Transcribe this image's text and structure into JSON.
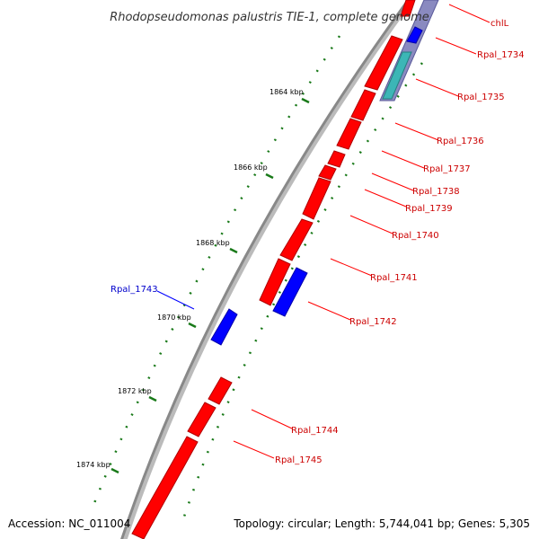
{
  "header": {
    "title": "Rhodopseudomonas palustris TIE-1, complete genome"
  },
  "footer": {
    "accession": "Accession: NC_011004",
    "topology": "Topology: circular; Length: 5,744,041 bp; Genes: 5,305"
  },
  "colors": {
    "forward_strand": "#ff0000",
    "reverse_strand": "#0000ff",
    "label_forward": "#cc0000",
    "label_reverse": "#0000cc",
    "tick": "#1a7a1a",
    "backbone": "#888888",
    "other_feature": "#3cb6b6",
    "highlight": "#8a8ac0"
  },
  "ticks": [
    {
      "label": "1864 kbp"
    },
    {
      "label": "1866 kbp"
    },
    {
      "label": "1868 kbp"
    },
    {
      "label": "1870 kbp"
    },
    {
      "label": "1872 kbp"
    },
    {
      "label": "1874 kbp"
    }
  ],
  "genes": [
    {
      "name": "chlL",
      "strand": "reverse"
    },
    {
      "name": "Rpal_1734",
      "strand": "reverse"
    },
    {
      "name": "Rpal_1735",
      "strand": "forward"
    },
    {
      "name": "Rpal_1736",
      "strand": "forward"
    },
    {
      "name": "Rpal_1737",
      "strand": "forward"
    },
    {
      "name": "Rpal_1738",
      "strand": "forward"
    },
    {
      "name": "Rpal_1739",
      "strand": "forward"
    },
    {
      "name": "Rpal_1740",
      "strand": "forward"
    },
    {
      "name": "Rpal_1741",
      "strand": "forward"
    },
    {
      "name": "Rpal_1742",
      "strand": "reverse"
    },
    {
      "name": "Rpal_1743",
      "strand": "reverse"
    },
    {
      "name": "Rpal_1744",
      "strand": "forward"
    },
    {
      "name": "Rpal_1745",
      "strand": "forward"
    }
  ]
}
